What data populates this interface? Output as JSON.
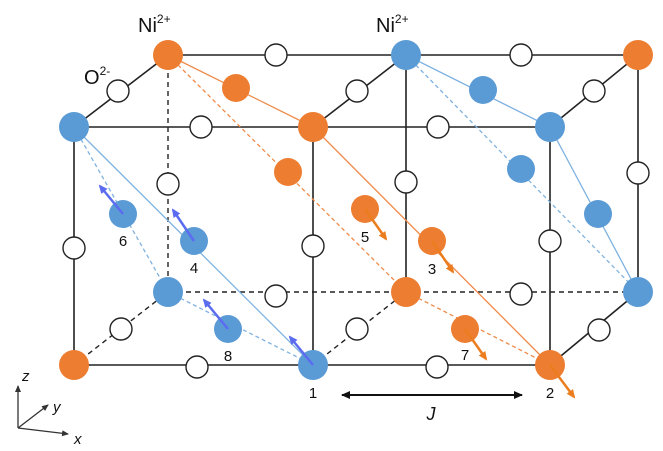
{
  "colors": {
    "nickel_blue": "#5b9bd5",
    "nickel_orange": "#ed7d31",
    "spin_blue": "#5b6cf0",
    "spin_orange": "#ec7d1f",
    "lattice": "#222222",
    "blue_plane": "#7fb2e0",
    "orange_plane": "#ef8b4a"
  },
  "labels": {
    "ni_left": "Ni",
    "ni_left_sup": "2+",
    "ni_right": "Ni",
    "ni_right_sup": "2+",
    "oxygen": "O",
    "oxygen_sup": "2-",
    "coupling": "J",
    "axis_x": "x",
    "axis_y": "y",
    "axis_z": "z"
  },
  "site_numbers": [
    "1",
    "2",
    "3",
    "4",
    "5",
    "6",
    "7",
    "8"
  ]
}
